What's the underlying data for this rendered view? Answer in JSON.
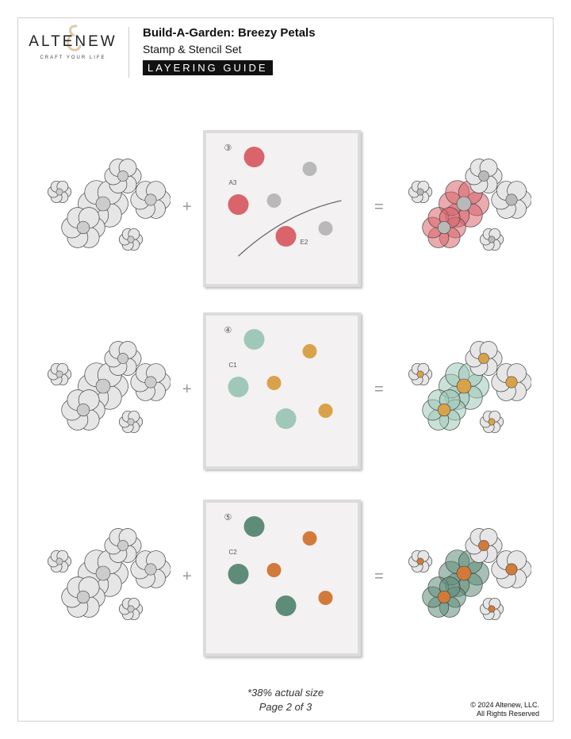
{
  "brand": {
    "name": "ALTENEW",
    "tagline": "CRAFT YOUR LIFE"
  },
  "header": {
    "title": "Build-A-Garden: Breezy Petals",
    "subtitle": "Stamp & Stencil Set",
    "badge": "LAYERING GUIDE"
  },
  "steps": [
    {
      "number": "③",
      "labels": [
        "A3",
        "E2"
      ],
      "colors": [
        "#d9646b",
        "#b9b9b9"
      ],
      "plus": "+",
      "equals": "="
    },
    {
      "number": "④",
      "labels": [
        "C1"
      ],
      "colors": [
        "#9fc8b8",
        "#d9a24a"
      ],
      "plus": "+",
      "equals": "="
    },
    {
      "number": "⑤",
      "labels": [
        "C2"
      ],
      "colors": [
        "#5f8c79",
        "#d27a3a"
      ],
      "plus": "+",
      "equals": "="
    }
  ],
  "footer": {
    "size_note": "*38% actual size",
    "page": "Page 2 of 3",
    "copyright": "© 2024 Altenew, LLC.",
    "rights": "All Rights Reserved"
  }
}
